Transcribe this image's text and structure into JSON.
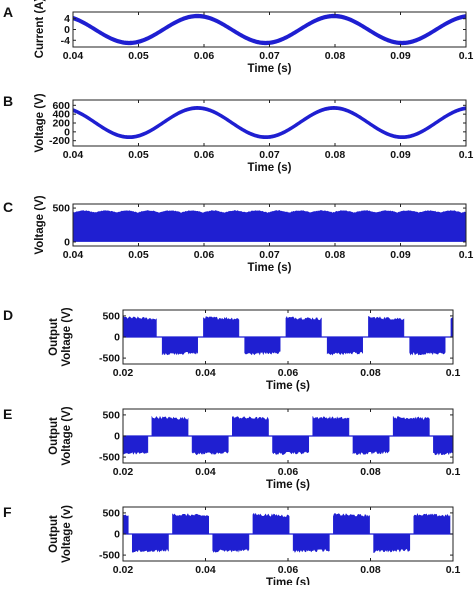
{
  "colors": {
    "trace": "#1f1fd1",
    "axis": "#222222",
    "background": "#ffffff"
  },
  "chart_data": [
    {
      "panel": "A",
      "type": "line",
      "waveform": "sine",
      "xlabel": "Time (s)",
      "ylabel": "Current (A)",
      "xlim": [
        0.04,
        0.1
      ],
      "ylim": [
        -6.5,
        6.5
      ],
      "xticks": [
        0.04,
        0.05,
        0.06,
        0.07,
        0.08,
        0.09,
        0.1
      ],
      "xtick_labels": [
        "0.04",
        "0.05",
        "0.06",
        "0.07",
        "0.08",
        "0.09",
        "0.1"
      ],
      "yticks": [
        4,
        0,
        -4
      ],
      "ytick_labels": [
        "4",
        "0",
        "-4"
      ],
      "amplitude": 5,
      "offset": 0,
      "frequency_hz": 48,
      "peak_time": 0.059,
      "ripple": 0.5
    },
    {
      "panel": "B",
      "type": "line",
      "waveform": "sine",
      "xlabel": "Time (s)",
      "ylabel": "Voltage (V)",
      "xlim": [
        0.04,
        0.1
      ],
      "ylim": [
        -320,
        720
      ],
      "xticks": [
        0.04,
        0.05,
        0.06,
        0.07,
        0.08,
        0.09,
        0.1
      ],
      "xtick_labels": [
        "0.04",
        "0.05",
        "0.06",
        "0.07",
        "0.08",
        "0.09",
        "0.1"
      ],
      "yticks": [
        600,
        400,
        200,
        0,
        -200
      ],
      "ytick_labels": [
        "600",
        "400",
        "200",
        "0",
        "-200"
      ],
      "amplitude": 330,
      "offset": 210,
      "frequency_hz": 48,
      "peak_time": 0.059,
      "ripple": 25
    },
    {
      "panel": "C",
      "type": "area",
      "waveform": "pwm-band",
      "xlabel": "Time (s)",
      "ylabel": "Voltage (V)",
      "xlim": [
        0.04,
        0.1
      ],
      "ylim": [
        -60,
        560
      ],
      "xticks": [
        0.04,
        0.05,
        0.06,
        0.07,
        0.08,
        0.09,
        0.1
      ],
      "xtick_labels": [
        "0.04",
        "0.05",
        "0.06",
        "0.07",
        "0.08",
        "0.09",
        "0.1"
      ],
      "yticks": [
        500,
        0
      ],
      "ytick_labels": [
        "500",
        "0"
      ],
      "band_min": 0,
      "band_max": 470,
      "band_ripple": 30,
      "ripple_period": 0.0033
    },
    {
      "panel": "D",
      "type": "area",
      "waveform": "square-pwm",
      "xlabel": "Time (s)",
      "ylabel": "Output Voltage (V)",
      "xlim": [
        0.02,
        0.1
      ],
      "ylim": [
        -640,
        640
      ],
      "xticks": [
        0.02,
        0.04,
        0.06,
        0.08,
        0.1
      ],
      "xtick_labels": [
        "0.02",
        "0.04",
        "0.06",
        "0.08",
        "0.1"
      ],
      "yticks": [
        500,
        0,
        -500
      ],
      "ytick_labels": [
        "500",
        "0",
        "-500"
      ],
      "positive_level": 420,
      "negative_level": -360,
      "period": 0.02,
      "first_rise": 0.0195,
      "duty": 0.43,
      "ripple": 70
    },
    {
      "panel": "E",
      "type": "area",
      "waveform": "square-pwm",
      "xlabel": "Time (s)",
      "ylabel": "Output Voltage (V)",
      "xlim": [
        0.02,
        0.1
      ],
      "ylim": [
        -640,
        640
      ],
      "xticks": [
        0.02,
        0.04,
        0.06,
        0.08,
        0.1
      ],
      "xtick_labels": [
        "0.02",
        "0.04",
        "0.06",
        "0.08",
        "0.1"
      ],
      "yticks": [
        500,
        0,
        -500
      ],
      "ytick_labels": [
        "500",
        "0",
        "-500"
      ],
      "positive_level": 400,
      "negative_level": -380,
      "period": 0.0195,
      "first_rise": 0.027,
      "duty": 0.45,
      "ripple": 70
    },
    {
      "panel": "F",
      "type": "area",
      "waveform": "square-pwm",
      "xlabel": "Time (s)",
      "ylabel": "Output Voltage (v)",
      "xlim": [
        0.02,
        0.1
      ],
      "ylim": [
        -640,
        640
      ],
      "xticks": [
        0.02,
        0.04,
        0.06,
        0.08,
        0.1
      ],
      "xtick_labels": [
        "0.02",
        "0.04",
        "0.06",
        "0.08",
        "0.1"
      ],
      "yticks": [
        500,
        0,
        -500
      ],
      "ytick_labels": [
        "500",
        "0",
        "-500"
      ],
      "positive_level": 420,
      "negative_level": -370,
      "period": 0.0195,
      "first_rise": 0.0125,
      "duty": 0.45,
      "ripple": 70
    }
  ]
}
